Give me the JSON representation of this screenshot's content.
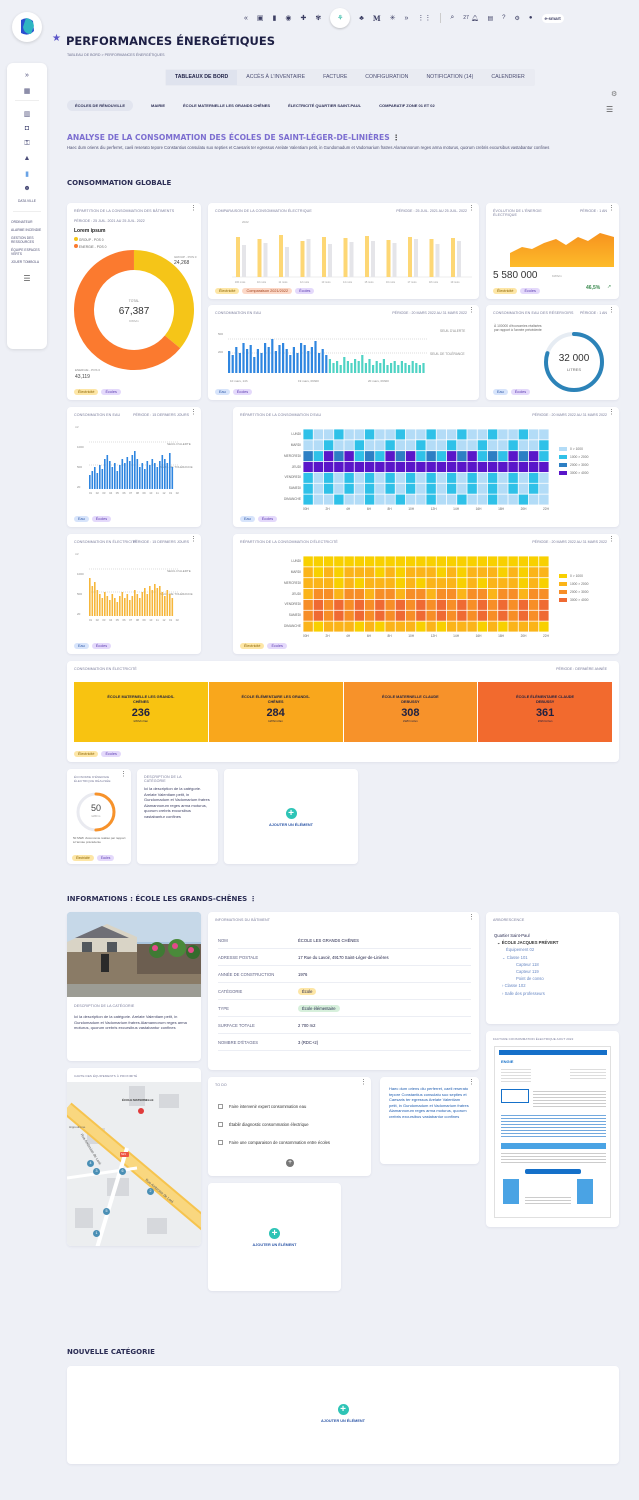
{
  "header": {
    "title": "PERFORMANCES ÉNERGÉTIQUES",
    "breadcrumb": "TABLEAU DE BORD > PERFORMANCES ÉNERGÉTIQUES",
    "notif_count": "27",
    "brand": "e-smart"
  },
  "sidebar": {
    "items": [
      "expand-icon",
      "dashboard-icon",
      "building-icon",
      "video-icon",
      "key-icon",
      "alert-icon",
      "chart-icon",
      "team-icon"
    ],
    "data_label": "DATA VILLE",
    "links": [
      "ORDINATEUR",
      "ALARME INCENDIE",
      "GESTION DES RESSOURCES",
      "ÉQUIPE ESPACES VERTS",
      "JOUER TOMBOLA"
    ]
  },
  "nav": {
    "tabs": [
      {
        "label": "TABLEAUX DE BORD",
        "active": true
      },
      {
        "label": "ACCÈS À L'INVENTAIRE",
        "active": false
      },
      {
        "label": "FACTURE",
        "active": false
      },
      {
        "label": "CONFIGURATION",
        "active": false
      },
      {
        "label": "NOTIFICATION (14)",
        "active": false
      },
      {
        "label": "CALENDRIER",
        "active": false
      }
    ]
  },
  "filters": [
    {
      "label": "ÉCOLES DE RÉNOUVILLE",
      "active": true
    },
    {
      "label": "MAIRIE",
      "active": false
    },
    {
      "label": "ÉCOLE MATERNELLE LES GRANDS CHÊNES",
      "active": false
    },
    {
      "label": "ÉLECTRICITÉ QUARTIER SAINT-PAUL",
      "active": false
    },
    {
      "label": "COMPARATIF ZONE 01 ET 02",
      "active": false
    }
  ],
  "analysis": {
    "title": "ANALYSE DE LA CONSOMMATION DES ÉCOLES DE SAINT-LÉGER-DE-LINIÈRES",
    "desc": "Haec dum oriens diu perferret, caeli reserato tepore Constantius consulatu suo septies et Caesaris ter egressus Arelate Valentiam petit, in Gundomadum et Vadomarium fratres Alamannorum reges arma moturus, quorum crebris excursibus vastabantur confines"
  },
  "sections": {
    "global": "CONSOMMATION GLOBALE",
    "info": "INFORMATIONS : ÉCOLE LES GRANDS-CHÊNES",
    "new": "NOUVELLE CATÉGORIE"
  },
  "tags": {
    "elec": "Électricité",
    "eco": "Écoles",
    "eau": "Eau",
    "cmp": "Comparaison 2021/2022"
  },
  "donut": {
    "title": "RÉPARTITION DE LA CONSOMMATION DES BÂTIMENTS",
    "period": "PÉRIODE : 25 JUIL. 2021 AU 25 JUIL. 2022",
    "lorem": "Lorem ipsum",
    "legend": [
      "GROUP - POS 0",
      "ENERGIE - POS 0"
    ],
    "total_label": "TOTAL",
    "total": "67,387",
    "unit": "KWh/m",
    "val_a": "24,268",
    "val_a_label": "GROUP - POS 0",
    "val_b": "43,119",
    "val_b_label": "ENERGIE - POS 0",
    "colors": [
      "#f5c518",
      "#fb7a2f"
    ],
    "share_a": 0.36
  },
  "comp_chart": {
    "title": "COMPARAISON DE LA CONSOMMATION ÉLECTRIQUE",
    "period": "PÉRIODE : 25 JUIL. 2021 AU 25 JUIL. 2022",
    "legend": "2022",
    "categories": [
      "100 mois",
      "10 mois",
      "11 mois",
      "12 mois",
      "13 mois",
      "14 mois",
      "15 mois",
      "16 mois",
      "17 mois",
      "18 mois",
      "19 mois"
    ]
  },
  "evolution": {
    "title": "ÉVOLUTION DE L'ÉNERGIE ÉLECTRIQUE",
    "period": "PÉRIODE : 1 AN",
    "value": "5 580 000",
    "unit": "KWh/m",
    "pct": "46,5%"
  },
  "eau_chart": {
    "title": "CONSOMMATION EN EAU",
    "period": "PÉRIODE : 20 MARS 2022 AU 31 MARS 2022",
    "ylabels": [
      "500",
      "200"
    ],
    "seuil1": "SEUIL D'ALERTE",
    "seuil2": "SEUIL DE TOLÉRANCE",
    "xlabels": [
      "10 mars, 14h",
      "19 mars, 09h00",
      "20 mars, 09h00"
    ]
  },
  "eau_gauge": {
    "title": "CONSOMMATION EN EAU DES RÉSERVOIRS",
    "period": "PÉRIODE : 1 AN",
    "note": "À 100000 d'économies réalisées par rapport à l'année précédente",
    "value": "32 000",
    "unit": "LITRES",
    "fill": 0.8
  },
  "eau_small": {
    "title": "CONSOMMATION EN EAU",
    "period": "PÉRIODE : 15 DERNIERS JOURS",
    "unit": "m³",
    "ylabels": [
      "1000",
      "500",
      "20"
    ],
    "seuil1": "SEUIL D'ALERTE",
    "seuil2": "SEUIL DE TOLÉRANCE",
    "xlabels": [
      "01",
      "02",
      "03",
      "04",
      "05",
      "06",
      "07",
      "08",
      "09",
      "10",
      "11",
      "12",
      "01",
      "02"
    ]
  },
  "eau_heat": {
    "title": "RÉPARTITION DE LA CONSOMMATION D'EAU",
    "period": "PÉRIODE : 20 MARS 2022 AU 31 MARS 2022",
    "days": [
      "LUNDI",
      "MARDI",
      "MERCREDI",
      "JEUDI",
      "VENDREDI",
      "SAMEDI",
      "DIMANCHE"
    ],
    "hours": [
      "00h",
      "2h",
      "4h",
      "6h",
      "8h",
      "10h",
      "12h",
      "14h",
      "16h",
      "18h",
      "20h",
      "22h"
    ],
    "legend": [
      "0 > 1000",
      "1000 > 2000",
      "2000 > 3000",
      "3000 > 4000"
    ],
    "colors": [
      "#b3dcf7",
      "#2fc1e8",
      "#2d7fc4",
      "#5a16c9"
    ]
  },
  "elec_small": {
    "title": "CONSOMMATION EN ÉLECTRICITÉ",
    "period": "PÉRIODE : 15 DERNIERS JOURS",
    "unit": "m³",
    "ylabels": [
      "1000",
      "500",
      "20"
    ],
    "seuil1": "SEUIL D'ALERTE",
    "seuil2": "SEUIL DE TOLÉRANCE",
    "xlabels": [
      "01",
      "02",
      "03",
      "04",
      "05",
      "06",
      "07",
      "08",
      "09",
      "10",
      "11",
      "12",
      "01",
      "02"
    ]
  },
  "elec_heat": {
    "title": "RÉPARTITION DE LA CONSOMMATION D'ÉLECTRICITÉ",
    "period": "PÉRIODE : 20 MARS 2022 AU 31 MARS 2022",
    "days": [
      "LUNDI",
      "MARDI",
      "MERCREDI",
      "JEUDI",
      "VENDREDI",
      "SAMEDI",
      "DIMANCHE"
    ],
    "hours": [
      "00h",
      "2h",
      "4h",
      "6h",
      "8h",
      "10h",
      "12h",
      "14h",
      "16h",
      "18h",
      "20h",
      "22h"
    ],
    "legend": [
      "0 > 1000",
      "1000 > 2000",
      "2000 > 3000",
      "3000 > 4000"
    ],
    "colors": [
      "#f8d000",
      "#fbb419",
      "#f78e27",
      "#ef6a33"
    ]
  },
  "elec_blocks": {
    "title": "CONSOMMATION EN ÉLECTRICITÉ",
    "period": "PÉRIODE : DERNIÈRE ANNÉE",
    "blocks": [
      {
        "name": "ÉCOLE MATERNELLE LES GRANDS-CHÊNES",
        "value": "236",
        "unit": "kWh/m²/an",
        "color": "#f8c311"
      },
      {
        "name": "ÉCOLE ÉLÉMENTAIRE LES GRANDS-CHÊNES",
        "value": "284",
        "unit": "kWh/m²/an",
        "color": "#f9a71c"
      },
      {
        "name": "ÉCOLE MATERNELLE CLAUDE DEBUSSY",
        "value": "308",
        "unit": "kWh/m²/an",
        "color": "#f7922a"
      },
      {
        "name": "ÉCOLE ÉLÉMENTAIRE CLAUDE DEBUSSY",
        "value": "361",
        "unit": "kWh/m²/an",
        "color": "#f26a2e"
      }
    ]
  },
  "eco_gauge": {
    "title": "ÉCONOMIE D'ÉNERGIE ÉLECTRIQUE RÉALISÉE",
    "value": "50",
    "unit": "kWh/m",
    "note": "50 MWh d'économie réalisé par rapport à l'année précédente",
    "fill": 0.5
  },
  "desc_card": {
    "title": "DESCRIPTION DE LA CATÉGORIE",
    "text": "Ici la description de la catégorie. Arelate Valentiam petit, in Gundomadum et Vadomarium fratres Alamannorum reges arma moturus, quorum crebris excursibus vastabantur confines"
  },
  "add_label": "AJOUTER UN ÉLÉMENT",
  "school_desc": {
    "title": "DESCRIPTION DE LA CATÉGORIE",
    "text": "Ici la description de la catégorie. Arelate Valentiam petit, in Gundomadum et Vadomarium fratres Alamannorum reges arma moturus, quorum crebris excursibus vastabantur confines"
  },
  "info_table": {
    "title": "INFORMATIONS DU BÂTIMENT",
    "rows": [
      {
        "k": "NOM",
        "v": "ÉCOLE LES GRANDS CHÊNES"
      },
      {
        "k": "ADRESSE POSTALE",
        "v": "17 Rue du Lavoir, 49170 Saint-Léger-de-Linières"
      },
      {
        "k": "ANNÉE DE CONSTRUCTION",
        "v": "1976"
      },
      {
        "k": "CATÉGORIE",
        "v": "École"
      },
      {
        "k": "TYPE",
        "v": "École élémentaire"
      },
      {
        "k": "SURFACE TOTALE",
        "v": "2 700 m2"
      },
      {
        "k": "NOMBRE D'ÉTAGES",
        "v": "3 (RDC+2)"
      }
    ]
  },
  "tree": {
    "title": "ARBORESCENCE",
    "items": [
      "Quartier Saint-Paul",
      "ÉCOLE JACQUES PRÉVERT",
      "Équipement 02",
      "Classe 101",
      "Capteur 118",
      "Capteur 119",
      "Point de conso",
      "Classe 102",
      "Salle des professeurs"
    ]
  },
  "map": {
    "title": "CARTE DES ÉQUIPEMENTS À PROXIMITÉ",
    "school": "ÉCOLE MATERNELLE",
    "road1": "Rue Ambroise de Loré",
    "road2": "Rue Ambroise de Loré",
    "label": "Hippodrome",
    "road_num": "N23",
    "pins": [
      "4",
      "3",
      "6",
      "2",
      "5",
      "1"
    ]
  },
  "todo": {
    "title": "TO DO",
    "items": [
      "Faire intervenir expert consommation eau",
      "Établir diagnostic consommation électrique",
      "Faire une comparaison de consommation entre écoles"
    ]
  },
  "note_text": "Haec dum oriens diu perferret, caeli reserato tepore Constantius consulatu suo septies et Caesaris ter egressus Arelate Valentiam petit, in Gundomadum et Vadomarium fratres Alamannorum reges arma moturus, quorum crebris excursibus vastabantur confines",
  "invoice": {
    "title": "FACTURE CONSOMMATION ÉLECTRIQUE AOUT 2022",
    "brand": "ENGIE"
  }
}
